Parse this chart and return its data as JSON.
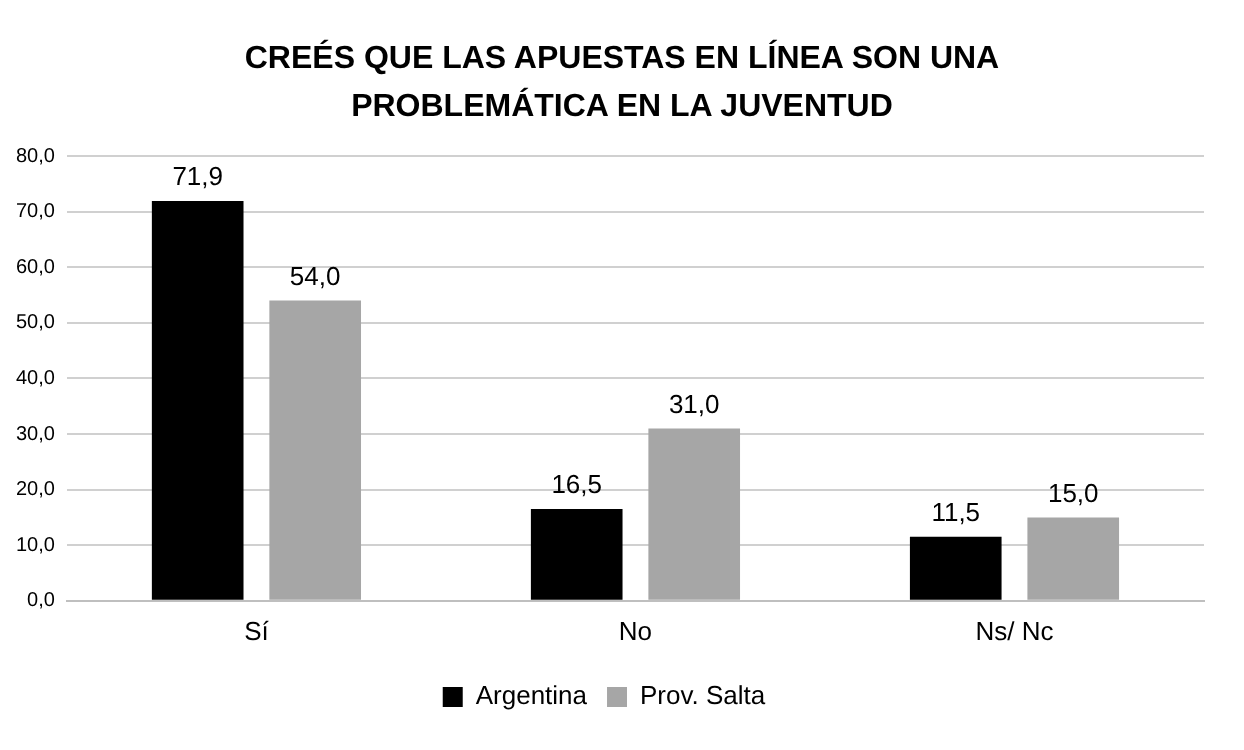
{
  "chart_data": {
    "type": "bar",
    "title": "CREÉS QUE LAS APUESTAS EN LÍNEA SON UNA PROBLEMÁTICA EN LA JUVENTUD",
    "categories": [
      "Sí",
      "No",
      "Ns/ Nc"
    ],
    "series": [
      {
        "name": "Argentina",
        "color": "#000000",
        "values": [
          71.9,
          16.5,
          11.5
        ],
        "value_labels": [
          "71,9",
          "16,5",
          "11,5"
        ]
      },
      {
        "name": "Prov. Salta",
        "color": "#a6a6a6",
        "values": [
          54.0,
          31.0,
          15.0
        ],
        "value_labels": [
          "54,0",
          "31,0",
          "15,0"
        ]
      }
    ],
    "ylim": [
      0,
      80
    ],
    "yticks": [
      {
        "value": 0,
        "label": "0,0"
      },
      {
        "value": 10,
        "label": "10,0"
      },
      {
        "value": 20,
        "label": "20,0"
      },
      {
        "value": 30,
        "label": "30,0"
      },
      {
        "value": 40,
        "label": "40,0"
      },
      {
        "value": 50,
        "label": "50,0"
      },
      {
        "value": 60,
        "label": "60,0"
      },
      {
        "value": 70,
        "label": "70,0"
      },
      {
        "value": 80,
        "label": "80,0"
      }
    ],
    "grid": "y",
    "legend": "bottom"
  }
}
